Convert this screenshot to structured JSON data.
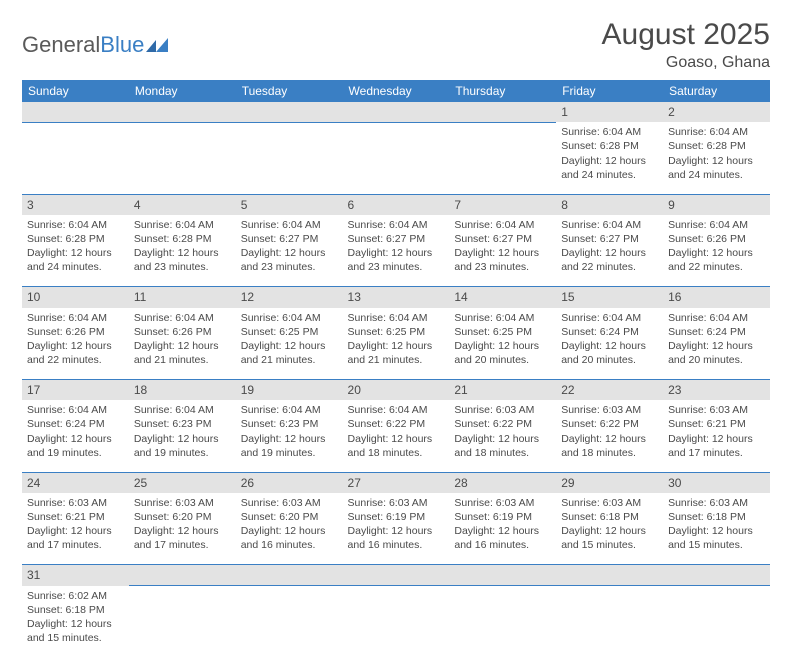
{
  "logo": {
    "part1": "General",
    "part2": "Blue"
  },
  "title": "August 2025",
  "location": "Goaso, Ghana",
  "colors": {
    "header_bg": "#3a7fc4",
    "header_text": "#ffffff",
    "daynum_bg": "#e3e3e3",
    "text": "#4a4a4a",
    "rule": "#3a7fc4"
  },
  "weekdays": [
    "Sunday",
    "Monday",
    "Tuesday",
    "Wednesday",
    "Thursday",
    "Friday",
    "Saturday"
  ],
  "weeks": [
    [
      null,
      null,
      null,
      null,
      null,
      {
        "n": "1",
        "sr": "Sunrise: 6:04 AM",
        "ss": "Sunset: 6:28 PM",
        "d1": "Daylight: 12 hours",
        "d2": "and 24 minutes."
      },
      {
        "n": "2",
        "sr": "Sunrise: 6:04 AM",
        "ss": "Sunset: 6:28 PM",
        "d1": "Daylight: 12 hours",
        "d2": "and 24 minutes."
      }
    ],
    [
      {
        "n": "3",
        "sr": "Sunrise: 6:04 AM",
        "ss": "Sunset: 6:28 PM",
        "d1": "Daylight: 12 hours",
        "d2": "and 24 minutes."
      },
      {
        "n": "4",
        "sr": "Sunrise: 6:04 AM",
        "ss": "Sunset: 6:28 PM",
        "d1": "Daylight: 12 hours",
        "d2": "and 23 minutes."
      },
      {
        "n": "5",
        "sr": "Sunrise: 6:04 AM",
        "ss": "Sunset: 6:27 PM",
        "d1": "Daylight: 12 hours",
        "d2": "and 23 minutes."
      },
      {
        "n": "6",
        "sr": "Sunrise: 6:04 AM",
        "ss": "Sunset: 6:27 PM",
        "d1": "Daylight: 12 hours",
        "d2": "and 23 minutes."
      },
      {
        "n": "7",
        "sr": "Sunrise: 6:04 AM",
        "ss": "Sunset: 6:27 PM",
        "d1": "Daylight: 12 hours",
        "d2": "and 23 minutes."
      },
      {
        "n": "8",
        "sr": "Sunrise: 6:04 AM",
        "ss": "Sunset: 6:27 PM",
        "d1": "Daylight: 12 hours",
        "d2": "and 22 minutes."
      },
      {
        "n": "9",
        "sr": "Sunrise: 6:04 AM",
        "ss": "Sunset: 6:26 PM",
        "d1": "Daylight: 12 hours",
        "d2": "and 22 minutes."
      }
    ],
    [
      {
        "n": "10",
        "sr": "Sunrise: 6:04 AM",
        "ss": "Sunset: 6:26 PM",
        "d1": "Daylight: 12 hours",
        "d2": "and 22 minutes."
      },
      {
        "n": "11",
        "sr": "Sunrise: 6:04 AM",
        "ss": "Sunset: 6:26 PM",
        "d1": "Daylight: 12 hours",
        "d2": "and 21 minutes."
      },
      {
        "n": "12",
        "sr": "Sunrise: 6:04 AM",
        "ss": "Sunset: 6:25 PM",
        "d1": "Daylight: 12 hours",
        "d2": "and 21 minutes."
      },
      {
        "n": "13",
        "sr": "Sunrise: 6:04 AM",
        "ss": "Sunset: 6:25 PM",
        "d1": "Daylight: 12 hours",
        "d2": "and 21 minutes."
      },
      {
        "n": "14",
        "sr": "Sunrise: 6:04 AM",
        "ss": "Sunset: 6:25 PM",
        "d1": "Daylight: 12 hours",
        "d2": "and 20 minutes."
      },
      {
        "n": "15",
        "sr": "Sunrise: 6:04 AM",
        "ss": "Sunset: 6:24 PM",
        "d1": "Daylight: 12 hours",
        "d2": "and 20 minutes."
      },
      {
        "n": "16",
        "sr": "Sunrise: 6:04 AM",
        "ss": "Sunset: 6:24 PM",
        "d1": "Daylight: 12 hours",
        "d2": "and 20 minutes."
      }
    ],
    [
      {
        "n": "17",
        "sr": "Sunrise: 6:04 AM",
        "ss": "Sunset: 6:24 PM",
        "d1": "Daylight: 12 hours",
        "d2": "and 19 minutes."
      },
      {
        "n": "18",
        "sr": "Sunrise: 6:04 AM",
        "ss": "Sunset: 6:23 PM",
        "d1": "Daylight: 12 hours",
        "d2": "and 19 minutes."
      },
      {
        "n": "19",
        "sr": "Sunrise: 6:04 AM",
        "ss": "Sunset: 6:23 PM",
        "d1": "Daylight: 12 hours",
        "d2": "and 19 minutes."
      },
      {
        "n": "20",
        "sr": "Sunrise: 6:04 AM",
        "ss": "Sunset: 6:22 PM",
        "d1": "Daylight: 12 hours",
        "d2": "and 18 minutes."
      },
      {
        "n": "21",
        "sr": "Sunrise: 6:03 AM",
        "ss": "Sunset: 6:22 PM",
        "d1": "Daylight: 12 hours",
        "d2": "and 18 minutes."
      },
      {
        "n": "22",
        "sr": "Sunrise: 6:03 AM",
        "ss": "Sunset: 6:22 PM",
        "d1": "Daylight: 12 hours",
        "d2": "and 18 minutes."
      },
      {
        "n": "23",
        "sr": "Sunrise: 6:03 AM",
        "ss": "Sunset: 6:21 PM",
        "d1": "Daylight: 12 hours",
        "d2": "and 17 minutes."
      }
    ],
    [
      {
        "n": "24",
        "sr": "Sunrise: 6:03 AM",
        "ss": "Sunset: 6:21 PM",
        "d1": "Daylight: 12 hours",
        "d2": "and 17 minutes."
      },
      {
        "n": "25",
        "sr": "Sunrise: 6:03 AM",
        "ss": "Sunset: 6:20 PM",
        "d1": "Daylight: 12 hours",
        "d2": "and 17 minutes."
      },
      {
        "n": "26",
        "sr": "Sunrise: 6:03 AM",
        "ss": "Sunset: 6:20 PM",
        "d1": "Daylight: 12 hours",
        "d2": "and 16 minutes."
      },
      {
        "n": "27",
        "sr": "Sunrise: 6:03 AM",
        "ss": "Sunset: 6:19 PM",
        "d1": "Daylight: 12 hours",
        "d2": "and 16 minutes."
      },
      {
        "n": "28",
        "sr": "Sunrise: 6:03 AM",
        "ss": "Sunset: 6:19 PM",
        "d1": "Daylight: 12 hours",
        "d2": "and 16 minutes."
      },
      {
        "n": "29",
        "sr": "Sunrise: 6:03 AM",
        "ss": "Sunset: 6:18 PM",
        "d1": "Daylight: 12 hours",
        "d2": "and 15 minutes."
      },
      {
        "n": "30",
        "sr": "Sunrise: 6:03 AM",
        "ss": "Sunset: 6:18 PM",
        "d1": "Daylight: 12 hours",
        "d2": "and 15 minutes."
      }
    ],
    [
      {
        "n": "31",
        "sr": "Sunrise: 6:02 AM",
        "ss": "Sunset: 6:18 PM",
        "d1": "Daylight: 12 hours",
        "d2": "and 15 minutes."
      },
      null,
      null,
      null,
      null,
      null,
      null
    ]
  ]
}
